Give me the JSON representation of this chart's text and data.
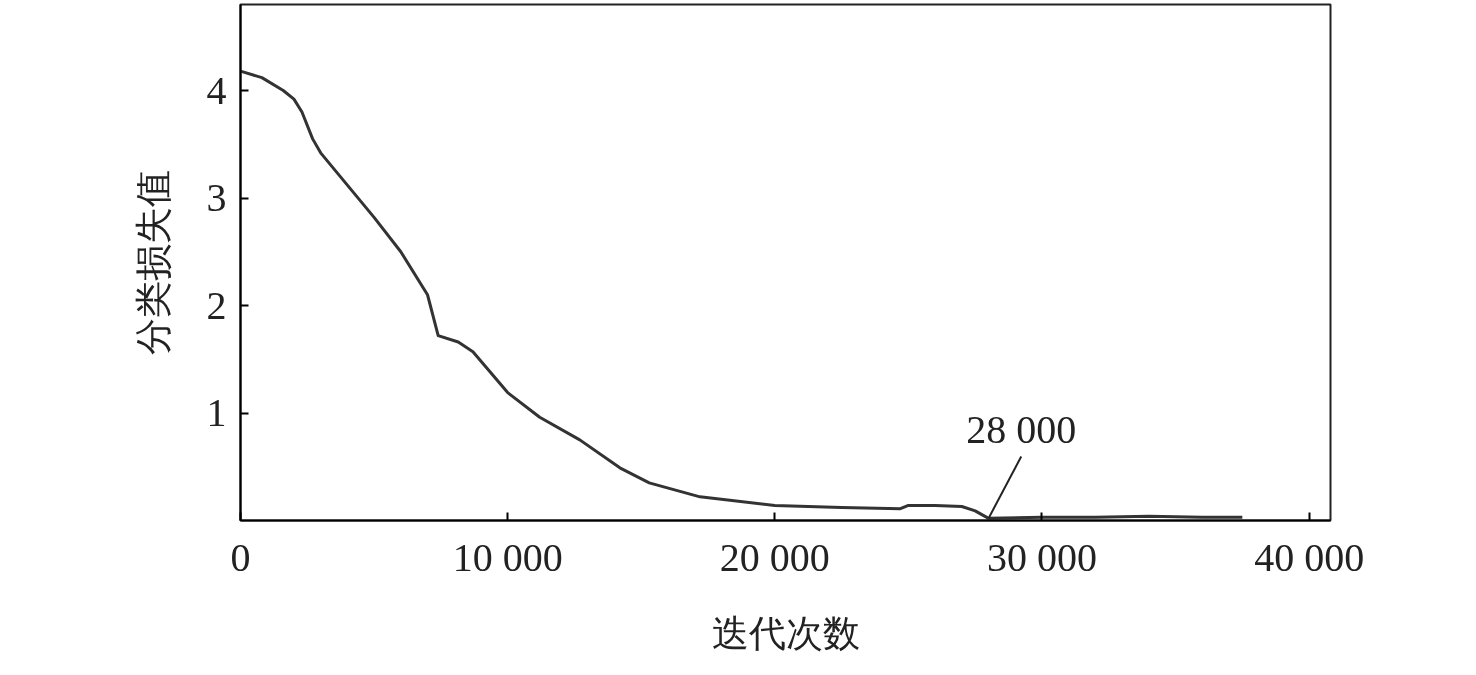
{
  "chart_data": {
    "type": "line",
    "xlabel": "迭代次数",
    "ylabel": "分类损失值",
    "xlim": [
      0,
      40800
    ],
    "ylim": [
      0,
      4.8
    ],
    "xticks": [
      0,
      {
        "value": 10000,
        "label": "10 000"
      },
      {
        "value": 20000,
        "label": "20 000"
      },
      {
        "value": 30000,
        "label": "30 000"
      },
      {
        "value": 40000,
        "label": "40 000"
      }
    ],
    "yticks": [
      1,
      2,
      3,
      4
    ],
    "grid": false,
    "annotations": [
      {
        "text": "28 000",
        "x": 28000,
        "y": 0.02
      }
    ],
    "series": [
      {
        "color": "#333333",
        "x": [
          0,
          800,
          1600,
          2000,
          2300,
          2700,
          3000,
          4000,
          5000,
          6000,
          7000,
          7400,
          8150,
          8700,
          10000,
          11200,
          12700,
          14200,
          15300,
          17200,
          20000,
          22500,
          24700,
          25000,
          26000,
          27000,
          27500,
          28000,
          30000,
          32000,
          34000,
          36000,
          37500
        ],
        "values": [
          4.18,
          4.12,
          4.0,
          3.92,
          3.8,
          3.55,
          3.42,
          3.12,
          2.82,
          2.5,
          2.1,
          1.72,
          1.66,
          1.57,
          1.19,
          0.96,
          0.75,
          0.49,
          0.35,
          0.22,
          0.14,
          0.12,
          0.11,
          0.14,
          0.14,
          0.13,
          0.09,
          0.02,
          0.03,
          0.03,
          0.04,
          0.03,
          0.03
        ]
      }
    ]
  }
}
